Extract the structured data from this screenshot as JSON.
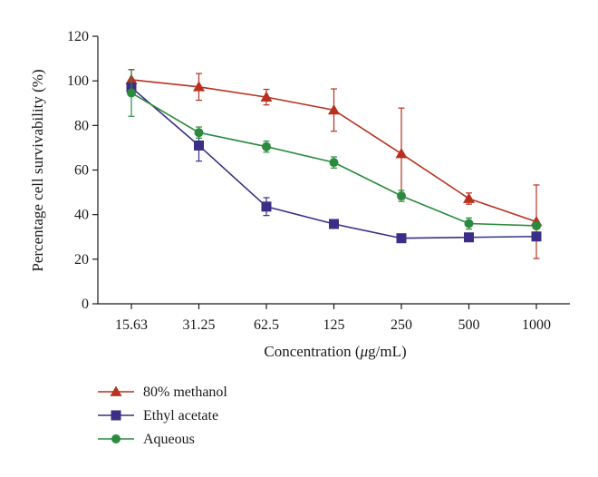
{
  "chart_data": {
    "type": "line",
    "title": "",
    "xlabel_prefix": "Concentration (",
    "xlabel_unit": "μ",
    "xlabel_suffix": "g/mL)",
    "ylabel": "Percentage cell survivability (%)",
    "categories": [
      "15.63",
      "31.25",
      "62.5",
      "125",
      "250",
      "500",
      "1000"
    ],
    "ylim": [
      0,
      120
    ],
    "yticks": [
      0,
      20,
      40,
      60,
      80,
      100,
      120
    ],
    "grid": false,
    "legend_position": "bottom-left",
    "series": [
      {
        "name": "80% methanol",
        "color": "#b8311f",
        "marker": "triangle",
        "values": [
          100.5,
          97.3,
          92.7,
          86.9,
          67.3,
          47.2,
          36.8
        ],
        "error": [
          4.5,
          6.0,
          3.5,
          9.5,
          20.5,
          2.5,
          16.5
        ]
      },
      {
        "name": "Ethyl acetate",
        "color": "#3a2e86",
        "marker": "square",
        "values": [
          97.0,
          71.0,
          43.6,
          35.8,
          29.4,
          29.8,
          30.2
        ],
        "error": [
          2.0,
          7.0,
          4.0,
          1.0,
          0.8,
          1.2,
          1.5
        ]
      },
      {
        "name": "Aqueous",
        "color": "#2b8a3e",
        "marker": "circle",
        "values": [
          94.6,
          76.8,
          70.5,
          63.4,
          48.4,
          36.0,
          35.0
        ],
        "error": [
          10.5,
          2.5,
          2.5,
          2.5,
          2.5,
          2.5,
          1.5
        ]
      }
    ]
  }
}
